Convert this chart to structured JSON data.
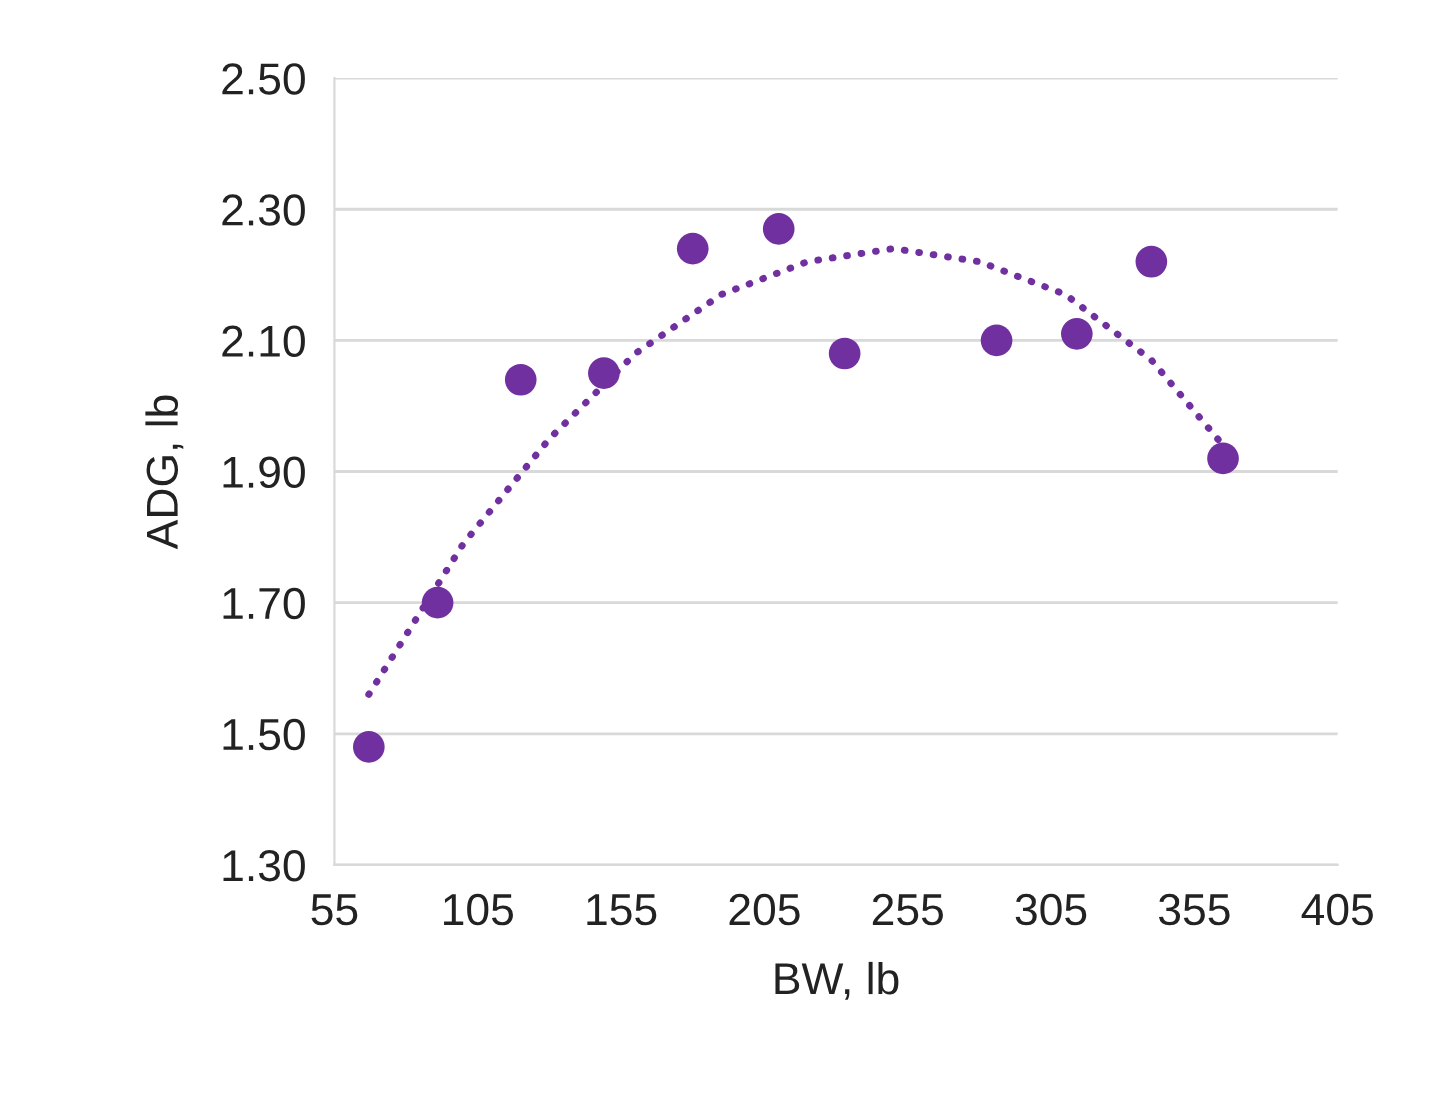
{
  "chart_data": {
    "type": "scatter",
    "xlabel": "BW, lb",
    "ylabel": "ADG, lb",
    "xlim": [
      55,
      405
    ],
    "xticks": [
      55,
      105,
      155,
      205,
      255,
      305,
      355,
      405
    ],
    "ylim": [
      1.3,
      2.5
    ],
    "yticks": [
      {
        "value": 1.3,
        "label": "1.30"
      },
      {
        "value": 1.5,
        "label": "1.50"
      },
      {
        "value": 1.7,
        "label": "1.70"
      },
      {
        "value": 1.9,
        "label": "1.90"
      },
      {
        "value": 2.1,
        "label": "2.10"
      },
      {
        "value": 2.3,
        "label": "2.30"
      },
      {
        "value": 2.5,
        "label": "2.50"
      }
    ],
    "grid": "y",
    "series": [
      {
        "marker": "circle",
        "color": "#7030a0",
        "x": [
          67,
          91,
          120,
          149,
          180,
          210,
          233,
          286,
          314,
          340,
          365
        ],
        "values": [
          1.48,
          1.7,
          2.04,
          2.05,
          2.24,
          2.27,
          2.08,
          2.1,
          2.11,
          2.22,
          1.92
        ]
      },
      {
        "type": "line",
        "color": "#7030a0",
        "line_style": "dotted",
        "x": [
          67,
          100,
          130,
          160,
          190,
          220,
          250,
          280,
          310,
          340,
          365
        ],
        "values": [
          1.56,
          1.79,
          1.95,
          2.08,
          2.17,
          2.22,
          2.24,
          2.22,
          2.17,
          2.07,
          1.94
        ]
      }
    ]
  }
}
